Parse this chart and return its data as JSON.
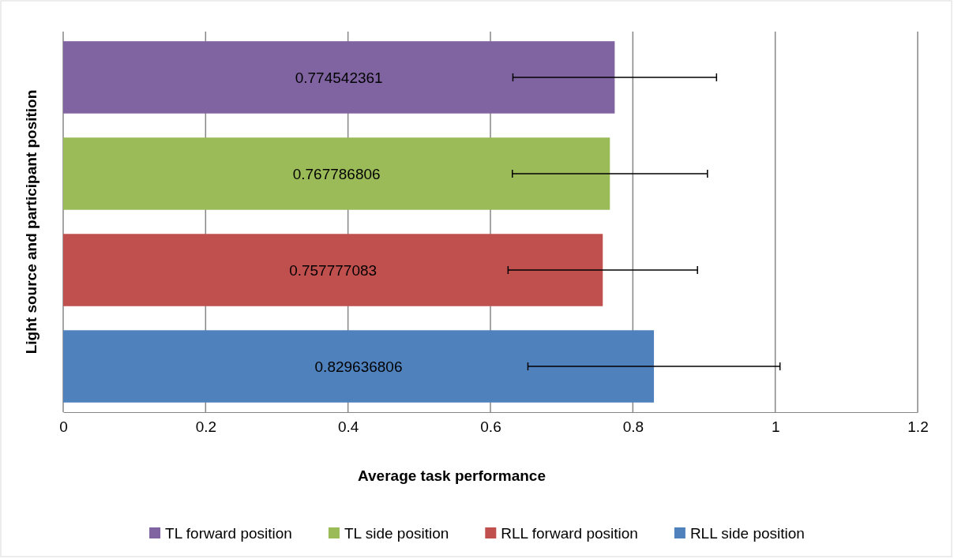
{
  "chart_data": {
    "type": "bar",
    "orientation": "horizontal",
    "xlabel": "Average task performance",
    "ylabel": "Light source and participant position",
    "categories": [
      null
    ],
    "series": [
      {
        "name": "TL forward position",
        "color": "#8064a2",
        "values": [
          0.774542361
        ],
        "errors": [
          0.143
        ]
      },
      {
        "name": "TL side position",
        "color": "#9bbb59",
        "values": [
          0.767786806
        ],
        "errors": [
          0.137
        ]
      },
      {
        "name": "RLL forward position",
        "color": "#c0504d",
        "values": [
          0.757777083
        ],
        "errors": [
          0.133
        ]
      },
      {
        "name": "RLL side position",
        "color": "#4f81bd",
        "values": [
          0.829636806
        ],
        "errors": [
          0.177
        ]
      }
    ],
    "xlim": [
      0,
      1.2
    ],
    "xticks": [
      0,
      0.2,
      0.4,
      0.6,
      0.8,
      1,
      1.2
    ],
    "grid": "x",
    "legend": "bottom",
    "data_labels": true
  }
}
